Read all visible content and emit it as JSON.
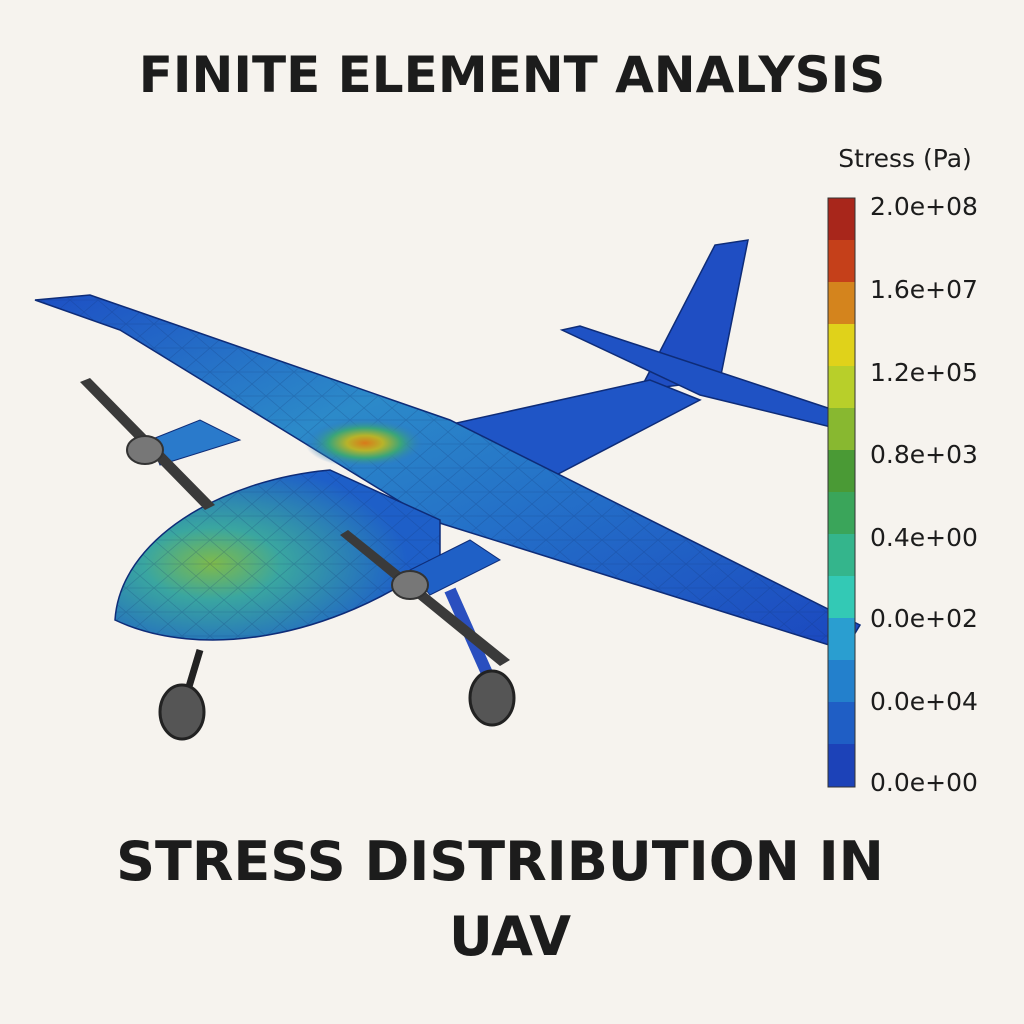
{
  "title": "FINITE ELEMENT ANALYSIS",
  "subtitle_lines": [
    "STRESS DISTRIBUTION IN",
    "UAV"
  ],
  "legend": {
    "title": "Stress (Pa)",
    "labels": [
      "2.0e+08",
      "1.6e+07",
      "1.2e+05",
      "0.8e+03",
      "0.4e+00",
      "0.0e+02",
      "0.0e+04",
      "0.0e+00"
    ]
  }
}
